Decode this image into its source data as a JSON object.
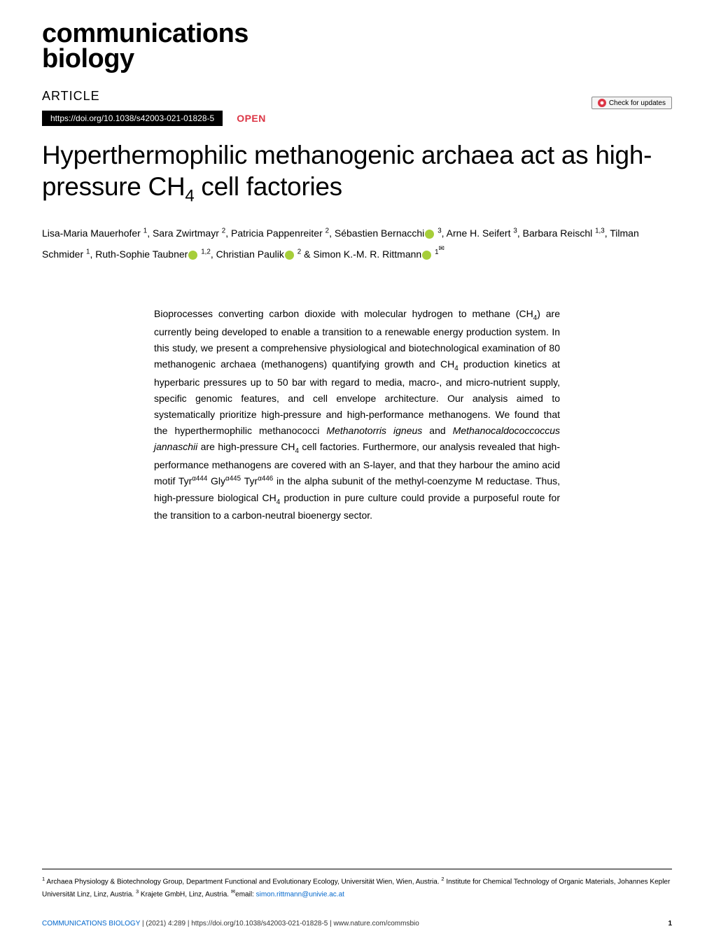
{
  "header": {
    "journal_name_line1": "communications",
    "journal_name_line2": "biology",
    "article_label": "ARTICLE",
    "check_updates_text": "Check for updates",
    "doi_url": "https://doi.org/10.1038/s42003-021-01828-5",
    "open_label": "OPEN"
  },
  "title": {
    "text_before_sub": "Hyperthermophilic methanogenic archaea act as high-pressure CH",
    "sub": "4",
    "text_after_sub": " cell factories"
  },
  "authors": [
    {
      "name": "Lisa-Maria Mauerhofer",
      "sup": "1",
      "orcid": false
    },
    {
      "name": "Sara Zwirtmayr",
      "sup": "2",
      "orcid": false
    },
    {
      "name": "Patricia Pappenreiter",
      "sup": "2",
      "orcid": false
    },
    {
      "name": "Sébastien Bernacchi",
      "sup": "3",
      "orcid": true
    },
    {
      "name": "Arne H. Seifert",
      "sup": "3",
      "orcid": false
    },
    {
      "name": "Barbara Reischl",
      "sup": "1,3",
      "orcid": false
    },
    {
      "name": "Tilman Schmider",
      "sup": "1",
      "orcid": false
    },
    {
      "name": "Ruth-Sophie Taubner",
      "sup": "1,2",
      "orcid": true
    },
    {
      "name": "Christian Paulik",
      "sup": "2",
      "orcid": true,
      "ampersand": true
    },
    {
      "name": "Simon K.-M. R. Rittmann",
      "sup": "1",
      "orcid": true,
      "corresponding": true
    }
  ],
  "abstract": {
    "text": "Bioprocesses converting carbon dioxide with molecular hydrogen to methane (CH₄) are currently being developed to enable a transition to a renewable energy production system. In this study, we present a comprehensive physiological and biotechnological examination of 80 methanogenic archaea (methanogens) quantifying growth and CH₄ production kinetics at hyperbaric pressures up to 50 bar with regard to media, macro-, and micro-nutrient supply, specific genomic features, and cell envelope architecture. Our analysis aimed to systematically prioritize high-pressure and high-performance methanogens. We found that the hyperthermophilic methanococci Methanotorris igneus and Methanocaldococcoccus jannaschii are high-pressure CH₄ cell factories. Furthermore, our analysis revealed that high-performance methanogens are covered with an S-layer, and that they harbour the amino acid motif Tyrᵅ⁴⁴⁴ Glyᵅ⁴⁴⁵ Tyrᵅ⁴⁴⁶ in the alpha subunit of the methyl-coenzyme M reductase. Thus, high-pressure biological CH₄ production in pure culture could provide a purposeful route for the transition to a carbon-neutral bioenergy sector."
  },
  "affiliations": {
    "aff1_sup": "1",
    "aff1": " Archaea Physiology & Biotechnology Group, Department Functional and Evolutionary Ecology, Universität Wien, Wien, Austria. ",
    "aff2_sup": "2",
    "aff2": " Institute for Chemical Technology of Organic Materials, Johannes Kepler Universität Linz, Linz, Austria. ",
    "aff3_sup": "3",
    "aff3": " Krajete GmbH, Linz, Austria. ",
    "email_prefix": "email: ",
    "email": "simon.rittmann@univie.ac.at"
  },
  "footer": {
    "journal": "COMMUNICATIONS BIOLOGY",
    "citation": " |            (2021) 4:289 | https://doi.org/10.1038/s42003-021-01828-5 | www.nature.com/commsbio",
    "page": "1"
  },
  "colors": {
    "open_red": "#dc3545",
    "orcid_green": "#a6ce39",
    "link_blue": "#0066cc",
    "black": "#000000",
    "white": "#ffffff"
  },
  "typography": {
    "journal_name_size": 38,
    "title_size": 37,
    "body_size": 14,
    "affiliation_size": 10,
    "footer_size": 10
  }
}
